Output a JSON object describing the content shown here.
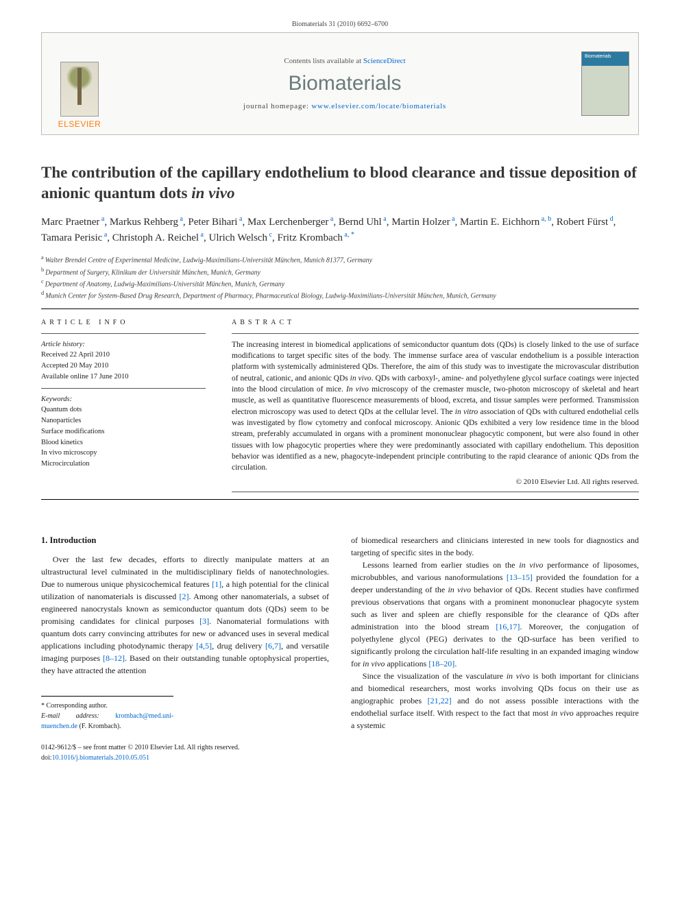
{
  "citation": "Biomaterials 31 (2010) 6692–6700",
  "header": {
    "publisher": "ELSEVIER",
    "contents_prefix": "Contents lists available at ",
    "contents_link": "ScienceDirect",
    "journal": "Biomaterials",
    "homepage_prefix": "journal homepage: ",
    "homepage_url": "www.elsevier.com/locate/biomaterials",
    "cover_label": "Biomaterials"
  },
  "title": {
    "main": "The contribution of the capillary endothelium to blood clearance and tissue deposition of anionic quantum dots ",
    "ital": "in vivo"
  },
  "authors": [
    {
      "name": "Marc Praetner",
      "aff": "a"
    },
    {
      "name": "Markus Rehberg",
      "aff": "a"
    },
    {
      "name": "Peter Bihari",
      "aff": "a"
    },
    {
      "name": "Max Lerchenberger",
      "aff": "a"
    },
    {
      "name": "Bernd Uhl",
      "aff": "a"
    },
    {
      "name": "Martin Holzer",
      "aff": "a"
    },
    {
      "name": "Martin E. Eichhorn",
      "aff": "a, b"
    },
    {
      "name": "Robert Fürst",
      "aff": "d"
    },
    {
      "name": "Tamara Perisic",
      "aff": "a"
    },
    {
      "name": "Christoph A. Reichel",
      "aff": "a"
    },
    {
      "name": "Ulrich Welsch",
      "aff": "c"
    },
    {
      "name": "Fritz Krombach",
      "aff": "a, *"
    }
  ],
  "affiliations": [
    {
      "key": "a",
      "text": "Walter Brendel Centre of Experimental Medicine, Ludwig-Maximilians-Universität München, Munich 81377, Germany"
    },
    {
      "key": "b",
      "text": "Department of Surgery, Klinikum der Universität München, Munich, Germany"
    },
    {
      "key": "c",
      "text": "Department of Anatomy, Ludwig-Maximilians-Universität München, Munich, Germany"
    },
    {
      "key": "d",
      "text": "Munich Center for System-Based Drug Research, Department of Pharmacy, Pharmaceutical Biology, Ludwig-Maximilians-Universität München, Munich, Germany"
    }
  ],
  "info": {
    "heading": "ARTICLE INFO",
    "history_label": "Article history:",
    "received": "Received 22 April 2010",
    "accepted": "Accepted 20 May 2010",
    "online": "Available online 17 June 2010",
    "keywords_label": "Keywords:",
    "keywords": [
      "Quantum dots",
      "Nanoparticles",
      "Surface modifications",
      "Blood kinetics",
      "In vivo microscopy",
      "Microcirculation"
    ]
  },
  "abstract": {
    "heading": "ABSTRACT",
    "text_parts": [
      "The increasing interest in biomedical applications of semiconductor quantum dots (QDs) is closely linked to the use of surface modifications to target specific sites of the body. The immense surface area of vascular endothelium is a possible interaction platform with systemically administered QDs. Therefore, the aim of this study was to investigate the microvascular distribution of neutral, cationic, and anionic QDs ",
      "in vivo",
      ". QDs with carboxyl-, amine- and polyethylene glycol surface coatings were injected into the blood circulation of mice. ",
      "In vivo",
      " microscopy of the cremaster muscle, two-photon microscopy of skeletal and heart muscle, as well as quantitative fluorescence measurements of blood, excreta, and tissue samples were performed. Transmission electron microscopy was used to detect QDs at the cellular level. The ",
      "in vitro",
      " association of QDs with cultured endothelial cells was investigated by flow cytometry and confocal microscopy. Anionic QDs exhibited a very low residence time in the blood stream, preferably accumulated in organs with a prominent mononuclear phagocytic component, but were also found in other tissues with low phagocytic properties where they were predominantly associated with capillary endothelium. This deposition behavior was identified as a new, phagocyte-independent principle contributing to the rapid clearance of anionic QDs from the circulation."
    ],
    "copyright": "© 2010 Elsevier Ltd. All rights reserved."
  },
  "body": {
    "section_number": "1.",
    "section_title": "Introduction",
    "p1_parts": [
      "Over the last few decades, efforts to directly manipulate matters at an ultrastructural level culminated in the multidisciplinary fields of nanotechnologies. Due to numerous unique physicochemical features ",
      "[1]",
      ", a high potential for the clinical utilization of nanomaterials is discussed ",
      "[2]",
      ". Among other nanomaterials, a subset of engineered nanocrystals known as semiconductor quantum dots (QDs) seem to be promising candidates for clinical purposes ",
      "[3]",
      ". Nanomaterial formulations with quantum dots carry convincing attributes for new or advanced uses in several medical applications including photodynamic therapy ",
      "[4,5]",
      ", drug delivery ",
      "[6,7]",
      ", and versatile imaging purposes ",
      "[8–12]",
      ". Based on their outstanding tunable optophysical properties, they have attracted the attention"
    ],
    "p1b": "of biomedical researchers and clinicians interested in new tools for diagnostics and targeting of specific sites in the body.",
    "p2_parts": [
      "Lessons learned from earlier studies on the ",
      "in vivo",
      " performance of liposomes, microbubbles, and various nanoformulations ",
      "[13–15]",
      " provided the foundation for a deeper understanding of the ",
      "in vivo",
      " behavior of QDs. Recent studies have confirmed previous observations that organs with a prominent mononuclear phagocyte system such as liver and spleen are chiefly responsible for the clearance of QDs after administration into the blood stream ",
      "[16,17]",
      ". Moreover, the conjugation of polyethylene glycol (PEG) derivates to the QD-surface has been verified to significantly prolong the circulation half-life resulting in an expanded imaging window for ",
      "in vivo",
      " applications ",
      "[18–20]",
      "."
    ],
    "p3_parts": [
      "Since the visualization of the vasculature ",
      "in vivo",
      " is both important for clinicians and biomedical researchers, most works involving QDs focus on their use as angiographic probes ",
      "[21,22]",
      " and do not assess possible interactions with the endothelial surface itself. With respect to the fact that most ",
      "in vivo",
      " approaches require a systemic"
    ]
  },
  "footer": {
    "corr_label": "* Corresponding author.",
    "email_label": "E-mail address:",
    "email": "krombach@med.uni-muenchen.de",
    "email_who": "(F. Krombach).",
    "ident_line1": "0142-9612/$ – see front matter © 2010 Elsevier Ltd. All rights reserved.",
    "ident_line2_label": "doi:",
    "ident_line2_link": "10.1016/j.biomaterials.2010.05.051"
  },
  "colors": {
    "link": "#0066cc",
    "publisher": "#ff7a00",
    "journal_name": "#6a7a7a",
    "rule": "#000000",
    "text": "#1a1a1a"
  },
  "typography": {
    "title_pt": 23,
    "authors_pt": 15,
    "body_pt": 12,
    "abstract_pt": 11.5,
    "info_pt": 10.5,
    "journal_pt": 30
  }
}
